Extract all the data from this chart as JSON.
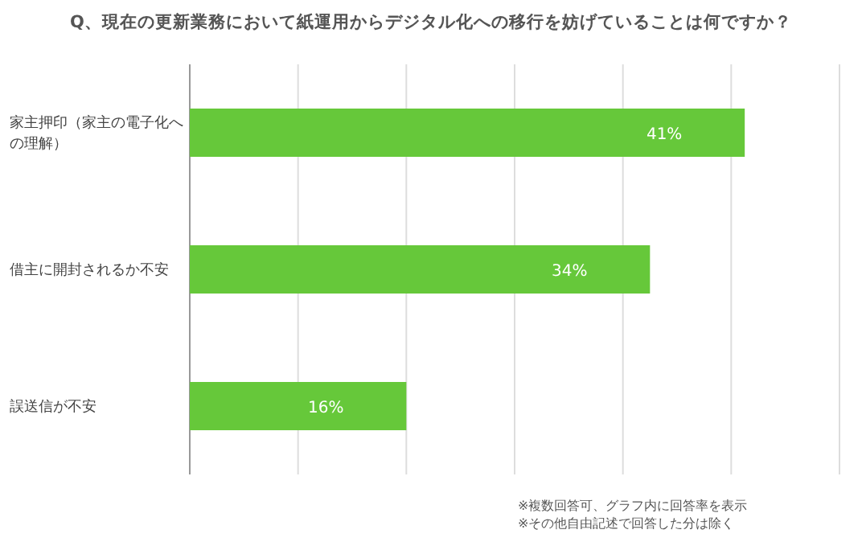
{
  "chart_data": {
    "type": "bar",
    "orientation": "horizontal",
    "title": "Q、現在の更新業務において紙運用からデジタル化への移行を妨げていることは何ですか？",
    "categories": [
      "家主押印（家主の電子化への理解）",
      "借主に開封されるか不安",
      "誤送信が不安"
    ],
    "values": [
      41,
      34,
      16
    ],
    "color": "#66c83a",
    "value_labels": [
      "41%",
      "34%",
      "16%"
    ],
    "xlim": [
      0,
      48
    ],
    "xticks": [
      {
        "value": 0,
        "label": null
      },
      {
        "value": 8,
        "label": null
      },
      {
        "value": 16,
        "label": null
      },
      {
        "value": 24,
        "label": null
      },
      {
        "value": 32,
        "label": null
      },
      {
        "value": 40,
        "label": null
      },
      {
        "value": 48,
        "label": null
      }
    ],
    "tick_labels": "y",
    "grid": "x",
    "annotations": [
      "※複数回答可、グラフ内に回答率を表示",
      "※その他自由記述で回答した分は除く"
    ]
  }
}
